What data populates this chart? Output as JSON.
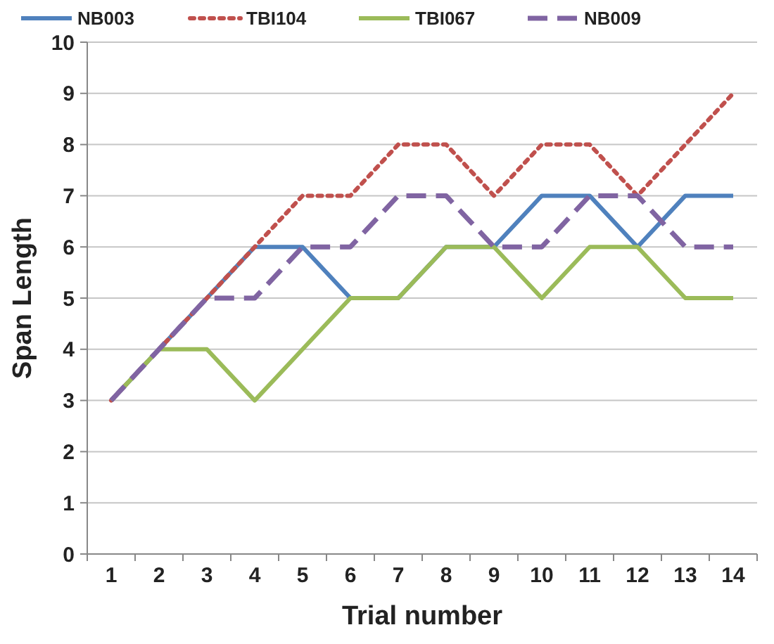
{
  "chart_data": {
    "type": "line",
    "xlabel": "Trial number",
    "ylabel": "Span Length",
    "categories": [
      "1",
      "2",
      "3",
      "4",
      "5",
      "6",
      "7",
      "8",
      "9",
      "10",
      "11",
      "12",
      "13",
      "14"
    ],
    "series": [
      {
        "name": "NB003",
        "color": "#4f81bd",
        "line_style": "solid",
        "values": [
          3,
          4,
          5,
          6,
          6,
          5,
          5,
          6,
          6,
          7,
          7,
          6,
          7,
          7
        ]
      },
      {
        "name": "TBI104",
        "color": "#c0504d",
        "line_style": "dotted",
        "values": [
          3,
          4,
          5,
          6,
          7,
          7,
          8,
          8,
          7,
          8,
          8,
          7,
          8,
          9
        ]
      },
      {
        "name": "TBI067",
        "color": "#9bbb59",
        "line_style": "solid",
        "values": [
          3,
          4,
          4,
          3,
          4,
          5,
          5,
          6,
          6,
          5,
          6,
          6,
          5,
          5
        ]
      },
      {
        "name": "NB009",
        "color": "#8064a2",
        "line_style": "dashed",
        "values": [
          3,
          4,
          5,
          5,
          6,
          6,
          7,
          7,
          6,
          6,
          7,
          7,
          6,
          6
        ]
      }
    ],
    "ylim": [
      0,
      10
    ],
    "yticks": [
      0,
      1,
      2,
      3,
      4,
      5,
      6,
      7,
      8,
      9,
      10
    ],
    "grid": "y",
    "legend": "top",
    "marker": "none"
  }
}
